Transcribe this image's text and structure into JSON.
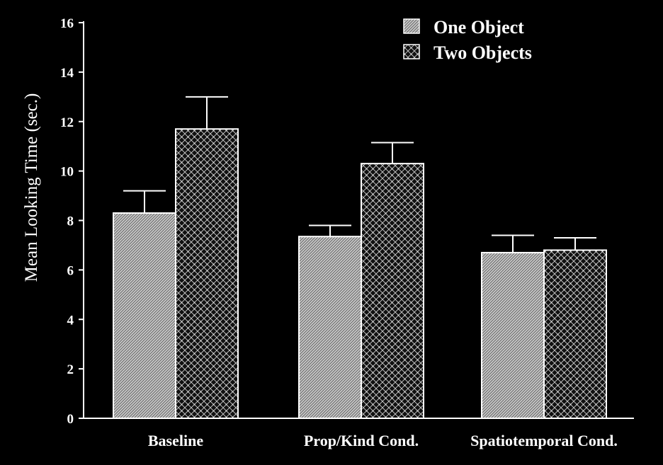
{
  "chart_data": {
    "type": "bar",
    "title": "",
    "xlabel": "",
    "ylabel": "Mean Looking Time (sec.)",
    "ylim": [
      0,
      16
    ],
    "yticks": [
      0,
      2,
      4,
      6,
      8,
      10,
      12,
      14,
      16
    ],
    "grid": false,
    "legend_position": "top-right",
    "categories": [
      "Baseline",
      "Prop/Kind Cond.",
      "Spatiotemporal Cond."
    ],
    "series": [
      {
        "name": "One Object",
        "pattern": "diagonal-hatch",
        "values": [
          8.3,
          7.35,
          6.7
        ],
        "error": [
          0.9,
          0.45,
          0.7
        ]
      },
      {
        "name": "Two Objects",
        "pattern": "crosshatch",
        "values": [
          11.7,
          10.3,
          6.8
        ],
        "error": [
          1.3,
          0.85,
          0.5
        ]
      }
    ],
    "colors": {
      "background": "#000000",
      "foreground": "#ffffff"
    }
  }
}
